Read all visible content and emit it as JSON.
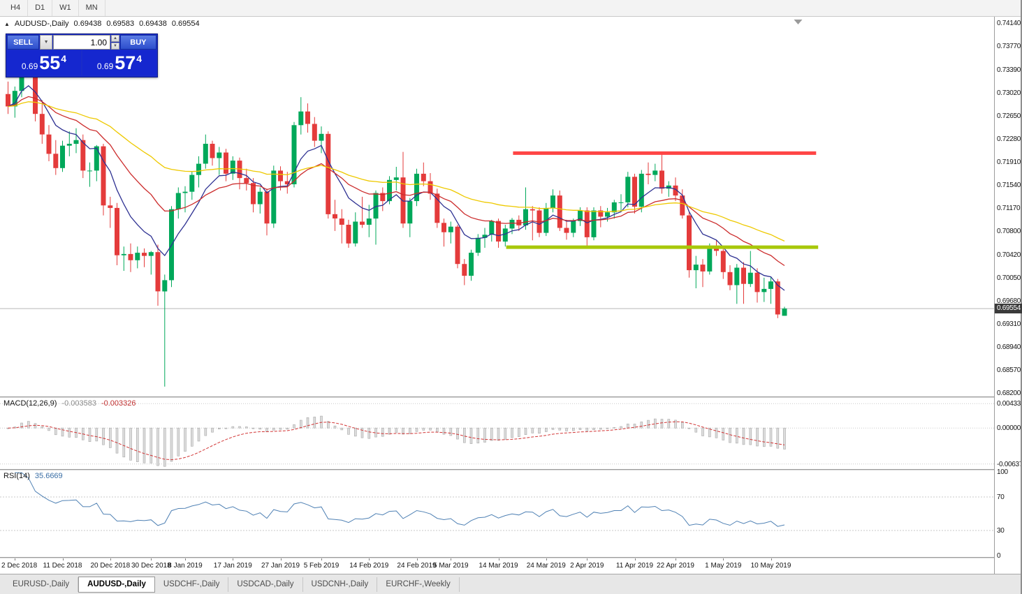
{
  "toolbar": {
    "timeframes": [
      "H4",
      "D1",
      "W1",
      "MN"
    ]
  },
  "header": {
    "symbol": "AUDUSD-,Daily",
    "open": "0.69438",
    "high": "0.69583",
    "low": "0.69438",
    "close": "0.69554"
  },
  "one_click": {
    "sell_label": "SELL",
    "buy_label": "BUY",
    "volume": "1.00",
    "sell_base": "0.69",
    "sell_big": "55",
    "sell_sup": "4",
    "buy_base": "0.69",
    "buy_big": "57",
    "buy_sup": "4"
  },
  "price_axis": {
    "ticks": [
      "0.74140",
      "0.73770",
      "0.73390",
      "0.73020",
      "0.72650",
      "0.72280",
      "0.71910",
      "0.71540",
      "0.71170",
      "0.70800",
      "0.70420",
      "0.70050",
      "0.69680",
      "0.69310",
      "0.68940",
      "0.68570",
      "0.68200"
    ],
    "bid_tag": "0.69554"
  },
  "macd_panel": {
    "label": "MACD(12,26,9)",
    "value_main": "-0.003583",
    "value_signal": "-0.003326",
    "axis": [
      "0.004331",
      "0.000000",
      "-0.006373"
    ]
  },
  "rsi_panel": {
    "label": "RSI(14)",
    "value": "35.6669",
    "axis": [
      "100",
      "70",
      "30",
      "0"
    ]
  },
  "tabs": [
    {
      "label": "EURUSD-,Daily",
      "active": false
    },
    {
      "label": "AUDUSD-,Daily",
      "active": true
    },
    {
      "label": "USDCHF-,Daily",
      "active": false
    },
    {
      "label": "USDCAD-,Daily",
      "active": false
    },
    {
      "label": "USDCNH-,Daily",
      "active": false
    },
    {
      "label": "EURCHF-,Weekly",
      "active": false
    }
  ],
  "chart_data": {
    "type": "candlestick",
    "symbol": "AUDUSD-",
    "period": "Daily",
    "bid": 0.69554,
    "visible_price_range": [
      0.68142,
      0.74241
    ],
    "candles": [
      [
        0.73,
        0.732,
        0.7268,
        0.728
      ],
      [
        0.728,
        0.7312,
        0.7262,
        0.7305
      ],
      [
        0.7305,
        0.7394,
        0.7295,
        0.7372
      ],
      [
        0.7372,
        0.738,
        0.733,
        0.7343
      ],
      [
        0.7343,
        0.735,
        0.7256,
        0.7268
      ],
      [
        0.7268,
        0.729,
        0.722,
        0.7235
      ],
      [
        0.7235,
        0.725,
        0.7192,
        0.7204
      ],
      [
        0.7204,
        0.7226,
        0.717,
        0.7181
      ],
      [
        0.7181,
        0.7225,
        0.7175,
        0.7217
      ],
      [
        0.7217,
        0.724,
        0.72,
        0.722
      ],
      [
        0.722,
        0.7245,
        0.7205,
        0.7226
      ],
      [
        0.7226,
        0.7235,
        0.7165,
        0.7177
      ],
      [
        0.7177,
        0.719,
        0.7151,
        0.7177
      ],
      [
        0.7177,
        0.7218,
        0.716,
        0.7216
      ],
      [
        0.7216,
        0.722,
        0.7105,
        0.7121
      ],
      [
        0.7121,
        0.7135,
        0.7085,
        0.7117
      ],
      [
        0.7117,
        0.7125,
        0.7025,
        0.7041
      ],
      [
        0.7041,
        0.7055,
        0.7016,
        0.7043
      ],
      [
        0.7043,
        0.706,
        0.7014,
        0.7033
      ],
      [
        0.7033,
        0.7055,
        0.702,
        0.7045
      ],
      [
        0.7045,
        0.7052,
        0.7022,
        0.704
      ],
      [
        0.704,
        0.7048,
        0.701,
        0.7046
      ],
      [
        0.7046,
        0.7058,
        0.696,
        0.6983
      ],
      [
        0.6983,
        0.701,
        0.683,
        0.7001
      ],
      [
        0.7001,
        0.712,
        0.699,
        0.7115
      ],
      [
        0.7115,
        0.715,
        0.71,
        0.7141
      ],
      [
        0.7141,
        0.7152,
        0.711,
        0.7143
      ],
      [
        0.7143,
        0.7175,
        0.713,
        0.717
      ],
      [
        0.717,
        0.72,
        0.715,
        0.7188
      ],
      [
        0.7188,
        0.7235,
        0.718,
        0.722
      ],
      [
        0.722,
        0.7225,
        0.7185,
        0.7197
      ],
      [
        0.7197,
        0.7215,
        0.717,
        0.7206
      ],
      [
        0.7206,
        0.7212,
        0.716,
        0.7172
      ],
      [
        0.7172,
        0.72,
        0.7162,
        0.7193
      ],
      [
        0.7193,
        0.7198,
        0.7147,
        0.7165
      ],
      [
        0.7165,
        0.718,
        0.7145,
        0.7157
      ],
      [
        0.7157,
        0.7165,
        0.711,
        0.7123
      ],
      [
        0.7123,
        0.715,
        0.7108,
        0.7143
      ],
      [
        0.7143,
        0.7148,
        0.7073,
        0.7092
      ],
      [
        0.7092,
        0.7185,
        0.7085,
        0.7177
      ],
      [
        0.7177,
        0.7184,
        0.7145,
        0.716
      ],
      [
        0.716,
        0.7175,
        0.714,
        0.7155
      ],
      [
        0.7155,
        0.7255,
        0.715,
        0.725
      ],
      [
        0.725,
        0.7295,
        0.7235,
        0.7272
      ],
      [
        0.7272,
        0.7285,
        0.7238,
        0.7252
      ],
      [
        0.7252,
        0.7263,
        0.7215,
        0.7225
      ],
      [
        0.7225,
        0.7248,
        0.7205,
        0.7236
      ],
      [
        0.7236,
        0.724,
        0.71,
        0.7107
      ],
      [
        0.7107,
        0.713,
        0.708,
        0.71
      ],
      [
        0.71,
        0.7115,
        0.706,
        0.709
      ],
      [
        0.709,
        0.7098,
        0.7053,
        0.706
      ],
      [
        0.706,
        0.711,
        0.7055,
        0.7095
      ],
      [
        0.7095,
        0.7135,
        0.7085,
        0.709
      ],
      [
        0.709,
        0.7122,
        0.707,
        0.71
      ],
      [
        0.71,
        0.7145,
        0.7058,
        0.7141
      ],
      [
        0.7141,
        0.715,
        0.7112,
        0.7128
      ],
      [
        0.7128,
        0.7168,
        0.7123,
        0.7162
      ],
      [
        0.7162,
        0.7183,
        0.7145,
        0.7166
      ],
      [
        0.7166,
        0.7207,
        0.7085,
        0.7092
      ],
      [
        0.7092,
        0.7133,
        0.707,
        0.7128
      ],
      [
        0.7128,
        0.718,
        0.712,
        0.7172
      ],
      [
        0.7172,
        0.719,
        0.7152,
        0.716
      ],
      [
        0.716,
        0.7173,
        0.713,
        0.714
      ],
      [
        0.714,
        0.7148,
        0.7085,
        0.7093
      ],
      [
        0.7093,
        0.71,
        0.7055,
        0.7078
      ],
      [
        0.7078,
        0.7095,
        0.706,
        0.7087
      ],
      [
        0.7087,
        0.709,
        0.702,
        0.7027
      ],
      [
        0.7027,
        0.7035,
        0.6993,
        0.7008
      ],
      [
        0.7008,
        0.705,
        0.7,
        0.7045
      ],
      [
        0.7045,
        0.7075,
        0.704,
        0.7069
      ],
      [
        0.7069,
        0.7085,
        0.7053,
        0.7074
      ],
      [
        0.7074,
        0.7098,
        0.7063,
        0.7096
      ],
      [
        0.7096,
        0.71,
        0.7053,
        0.7063
      ],
      [
        0.7063,
        0.709,
        0.7055,
        0.7084
      ],
      [
        0.7084,
        0.7101,
        0.7075,
        0.7098
      ],
      [
        0.7098,
        0.7105,
        0.708,
        0.7089
      ],
      [
        0.7089,
        0.715,
        0.7082,
        0.7115
      ],
      [
        0.7115,
        0.712,
        0.7065,
        0.7113
      ],
      [
        0.7113,
        0.7118,
        0.707,
        0.7077
      ],
      [
        0.7077,
        0.7125,
        0.7072,
        0.7117
      ],
      [
        0.7117,
        0.7147,
        0.711,
        0.7137
      ],
      [
        0.7137,
        0.7145,
        0.708,
        0.7085
      ],
      [
        0.7085,
        0.7098,
        0.7066,
        0.7077
      ],
      [
        0.7077,
        0.71,
        0.707,
        0.7096
      ],
      [
        0.7096,
        0.7118,
        0.7088,
        0.7113
      ],
      [
        0.7113,
        0.7118,
        0.7053,
        0.707
      ],
      [
        0.707,
        0.7118,
        0.7065,
        0.7113
      ],
      [
        0.7113,
        0.712,
        0.7086,
        0.7103
      ],
      [
        0.7103,
        0.7117,
        0.7095,
        0.711
      ],
      [
        0.711,
        0.713,
        0.71,
        0.7126
      ],
      [
        0.7126,
        0.7139,
        0.7112,
        0.7126
      ],
      [
        0.7126,
        0.7175,
        0.7118,
        0.7167
      ],
      [
        0.7167,
        0.7172,
        0.7108,
        0.7119
      ],
      [
        0.7119,
        0.7178,
        0.711,
        0.7172
      ],
      [
        0.7172,
        0.719,
        0.7155,
        0.717
      ],
      [
        0.717,
        0.7188,
        0.716,
        0.7177
      ],
      [
        0.7177,
        0.7206,
        0.714,
        0.7148
      ],
      [
        0.7148,
        0.716,
        0.7135,
        0.7153
      ],
      [
        0.7153,
        0.7166,
        0.7128,
        0.7137
      ],
      [
        0.7137,
        0.7147,
        0.71,
        0.7105
      ],
      [
        0.7105,
        0.711,
        0.7005,
        0.7017
      ],
      [
        0.7017,
        0.704,
        0.6988,
        0.7026
      ],
      [
        0.7026,
        0.7035,
        0.699,
        0.7015
      ],
      [
        0.7015,
        0.706,
        0.701,
        0.7055
      ],
      [
        0.7055,
        0.7065,
        0.704,
        0.7048
      ],
      [
        0.7048,
        0.7055,
        0.7003,
        0.7014
      ],
      [
        0.7014,
        0.7025,
        0.6985,
        0.6993
      ],
      [
        0.6993,
        0.7027,
        0.6963,
        0.7021
      ],
      [
        0.7021,
        0.703,
        0.6963,
        0.6995
      ],
      [
        0.6995,
        0.7048,
        0.699,
        0.7013
      ],
      [
        0.7013,
        0.702,
        0.6965,
        0.6982
      ],
      [
        0.6982,
        0.7005,
        0.6966,
        0.6987
      ],
      [
        0.6987,
        0.7006,
        0.6963,
        0.6999
      ],
      [
        0.6999,
        0.7003,
        0.694,
        0.6946
      ],
      [
        0.69438,
        0.69583,
        0.69438,
        0.69554
      ]
    ],
    "date_ticks": [
      {
        "label": "2 Dec 2018",
        "idx": 1
      },
      {
        "label": "11 Dec 2018",
        "idx": 8
      },
      {
        "label": "20 Dec 2018",
        "idx": 15
      },
      {
        "label": "30 Dec 2018",
        "idx": 21
      },
      {
        "label": "8 Jan 2019",
        "idx": 26
      },
      {
        "label": "17 Jan 2019",
        "idx": 33
      },
      {
        "label": "27 Jan 2019",
        "idx": 40
      },
      {
        "label": "5 Feb 2019",
        "idx": 46
      },
      {
        "label": "14 Feb 2019",
        "idx": 53
      },
      {
        "label": "24 Feb 2019",
        "idx": 60
      },
      {
        "label": "5 Mar 2019",
        "idx": 65
      },
      {
        "label": "14 Mar 2019",
        "idx": 72
      },
      {
        "label": "24 Mar 2019",
        "idx": 79
      },
      {
        "label": "2 Apr 2019",
        "idx": 85
      },
      {
        "label": "11 Apr 2019",
        "idx": 92
      },
      {
        "label": "22 Apr 2019",
        "idx": 98
      },
      {
        "label": "1 May 2019",
        "idx": 105
      },
      {
        "label": "10 May 2019",
        "idx": 112
      }
    ],
    "moving_averages": [
      {
        "period": 8,
        "color": "#2e3192"
      },
      {
        "period": 20,
        "color": "#cc2c2c"
      },
      {
        "period": 45,
        "color": "#eec900"
      }
    ],
    "objects": [
      {
        "type": "horizontal-segment",
        "name": "resistance-line",
        "price": 0.7205,
        "from_idx": 74.5,
        "to_idx": 119.0,
        "color": "#ff4545",
        "width": 5
      },
      {
        "type": "horizontal-segment",
        "name": "support-line",
        "price": 0.7054,
        "from_idx": 73.5,
        "to_idx": 119.3,
        "color": "#a8c80a",
        "width": 5
      }
    ],
    "indicators": {
      "macd": {
        "fast": 12,
        "slow": 26,
        "signal": 9,
        "current_main": -0.003583,
        "current_signal": -0.003326
      },
      "rsi": {
        "period": 14,
        "current": 35.6669,
        "levels": [
          70,
          30
        ]
      }
    },
    "colors": {
      "bull": "#00a85a",
      "bear": "#e43b3b",
      "macd_hist_fill": "#dcdcdc",
      "macd_hist_stroke": "#a9a9a9",
      "macd_signal": "#d23535",
      "rsi_line": "#4f81b4",
      "bid_line": "#b8b8b8",
      "grid_dotted": "#c9c9c9",
      "shift_marker": "#9a9a9a"
    }
  }
}
